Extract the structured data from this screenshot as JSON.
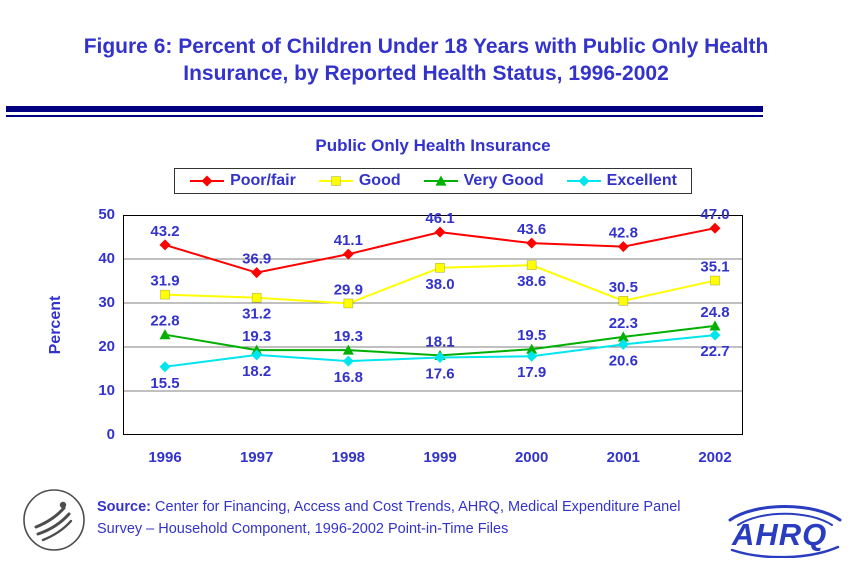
{
  "slide": {
    "title": "Figure 6: Percent of Children Under 18 Years with Public Only Health Insurance, by Reported Health Status, 1996-2002"
  },
  "footer": {
    "source_label": "Source:",
    "source_text": " Center for Financing, Access and Cost Trends, AHRQ, Medical Expenditure Panel Survey – Household Component, 1996-2002 Point-in-Time Files",
    "ahrq_logo_text": "AHRQ"
  },
  "colors": {
    "accent": "#3333CC",
    "divider": "#000080",
    "grid": "#808080",
    "axis_text": "#3333CC"
  },
  "chart_data": {
    "type": "line",
    "title": "Public Only Health Insurance",
    "categories": [
      "1996",
      "1997",
      "1998",
      "1999",
      "2000",
      "2001",
      "2002"
    ],
    "xlabel": "",
    "ylabel": "Percent",
    "ylim": [
      0,
      50
    ],
    "yticks": [
      0,
      10,
      20,
      30,
      40,
      50
    ],
    "grid": true,
    "legend_position": "top",
    "series": [
      {
        "name": "Poor/fair",
        "color": "#FF0000",
        "marker": "diamond",
        "values": [
          43.2,
          36.9,
          41.1,
          46.1,
          43.6,
          42.8,
          47.0
        ],
        "label_positions": [
          "above",
          "above",
          "above",
          "above",
          "above",
          "above",
          "above"
        ]
      },
      {
        "name": "Good",
        "color": "#FFFF00",
        "marker": "square",
        "values": [
          31.9,
          31.2,
          29.9,
          38.0,
          38.6,
          30.5,
          35.1
        ],
        "label_positions": [
          "above",
          "below",
          "above",
          "below",
          "below",
          "above",
          "above"
        ]
      },
      {
        "name": "Very Good",
        "color": "#00B000",
        "marker": "triangle",
        "values": [
          22.8,
          19.3,
          19.3,
          18.1,
          19.5,
          22.3,
          24.8
        ],
        "label_positions": [
          "above",
          "above",
          "above",
          "above",
          "above",
          "above",
          "above"
        ]
      },
      {
        "name": "Excellent",
        "color": "#00E5EE",
        "marker": "diamond",
        "values": [
          15.5,
          18.2,
          16.8,
          17.6,
          17.9,
          20.6,
          22.7
        ],
        "label_positions": [
          "below",
          "below",
          "below",
          "below",
          "below",
          "below",
          "below"
        ]
      }
    ]
  }
}
